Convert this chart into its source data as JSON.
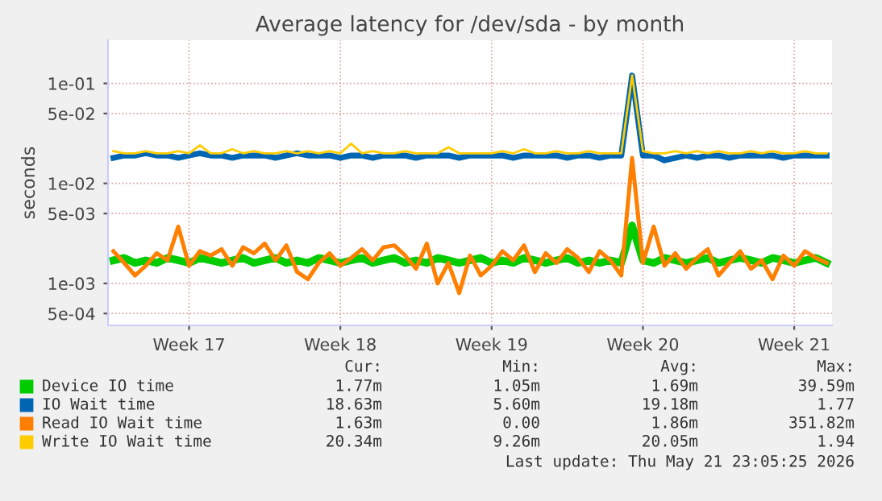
{
  "chart_data": {
    "type": "line",
    "title": "Average latency for /dev/sda - by month",
    "ylabel": "seconds",
    "log": "y",
    "categories": [
      null,
      null,
      null,
      null,
      null,
      null,
      null,
      "Week 17",
      null,
      null,
      null,
      null,
      null,
      null,
      null,
      null,
      null,
      null,
      null,
      null,
      null,
      "Week 18",
      null,
      null,
      null,
      null,
      null,
      null,
      null,
      null,
      null,
      null,
      null,
      null,
      null,
      "Week 19",
      null,
      null,
      null,
      null,
      null,
      null,
      null,
      null,
      null,
      null,
      null,
      null,
      null,
      "Week 20",
      null,
      null,
      null,
      null,
      null,
      null,
      null,
      null,
      null,
      null,
      null,
      null,
      null,
      "Week 21",
      null,
      null,
      null
    ],
    "ylim": [
      0.00038,
      0.27
    ],
    "yticks": [
      {
        "value": 0.1,
        "label": "1e-01"
      },
      {
        "value": 0.05,
        "label": "5e-02"
      },
      {
        "value": 0.01,
        "label": "1e-02"
      },
      {
        "value": 0.005,
        "label": "5e-03"
      },
      {
        "value": 0.001,
        "label": "1e-03"
      },
      {
        "value": 0.0005,
        "label": "5e-04"
      }
    ],
    "grid": true,
    "legend": "bottom",
    "series": [
      {
        "name": "Device IO time",
        "color": "#00cc00",
        "values": [
          0.0017,
          0.0018,
          0.0016,
          0.0017,
          0.0016,
          0.0018,
          0.0017,
          0.0016,
          0.0018,
          0.0017,
          0.0016,
          0.0017,
          0.0018,
          0.0016,
          0.0017,
          0.0018,
          0.0016,
          0.0017,
          0.0016,
          0.0018,
          0.0017,
          0.0016,
          0.0017,
          0.0018,
          0.0016,
          0.0017,
          0.0018,
          0.0016,
          0.0017,
          0.0016,
          0.0018,
          0.0017,
          0.0016,
          0.0017,
          0.0018,
          0.0016,
          0.0017,
          0.0016,
          0.0018,
          0.0017,
          0.0016,
          0.0017,
          0.0018,
          0.0016,
          0.0017,
          0.0016,
          0.0017,
          0.0016,
          0.0038,
          0.0017,
          0.0016,
          0.0018,
          0.0017,
          0.0016,
          0.0017,
          0.0018,
          0.0016,
          0.0017,
          0.0018,
          0.0017,
          0.0016,
          0.0018,
          0.0017,
          0.0016,
          0.0017,
          0.0018,
          0.0016
        ]
      },
      {
        "name": "IO Wait time",
        "color": "#0066b3",
        "values": [
          0.018,
          0.019,
          0.019,
          0.02,
          0.019,
          0.019,
          0.018,
          0.019,
          0.02,
          0.019,
          0.019,
          0.018,
          0.019,
          0.019,
          0.019,
          0.018,
          0.019,
          0.02,
          0.019,
          0.019,
          0.019,
          0.018,
          0.019,
          0.019,
          0.018,
          0.019,
          0.019,
          0.019,
          0.018,
          0.019,
          0.019,
          0.019,
          0.018,
          0.019,
          0.019,
          0.019,
          0.019,
          0.018,
          0.019,
          0.019,
          0.019,
          0.019,
          0.018,
          0.019,
          0.019,
          0.018,
          0.019,
          0.019,
          0.12,
          0.019,
          0.019,
          0.017,
          0.018,
          0.019,
          0.018,
          0.019,
          0.019,
          0.018,
          0.019,
          0.019,
          0.019,
          0.019,
          0.018,
          0.019,
          0.019,
          0.019,
          0.019
        ]
      },
      {
        "name": "Read IO Wait time",
        "color": "#ff8000",
        "values": [
          0.0021,
          0.0016,
          0.0012,
          0.0015,
          0.002,
          0.0017,
          0.0037,
          0.0015,
          0.0021,
          0.0019,
          0.0022,
          0.0015,
          0.0023,
          0.002,
          0.0025,
          0.0017,
          0.0024,
          0.0013,
          0.0011,
          0.0016,
          0.002,
          0.0015,
          0.0018,
          0.0022,
          0.0017,
          0.0023,
          0.0024,
          0.0019,
          0.0014,
          0.0025,
          0.001,
          0.0016,
          0.0008,
          0.0019,
          0.0012,
          0.0015,
          0.0021,
          0.0017,
          0.0024,
          0.0013,
          0.002,
          0.0016,
          0.0022,
          0.0018,
          0.0013,
          0.0021,
          0.0017,
          0.0012,
          0.018,
          0.0016,
          0.0037,
          0.0015,
          0.002,
          0.0014,
          0.0018,
          0.0022,
          0.0012,
          0.0016,
          0.0021,
          0.0014,
          0.0017,
          0.0011,
          0.0019,
          0.0015,
          0.0021,
          0.0018,
          0.0016
        ]
      },
      {
        "name": "Write IO Wait time",
        "color": "#ffcc00",
        "values": [
          0.021,
          0.02,
          0.02,
          0.021,
          0.02,
          0.02,
          0.021,
          0.02,
          0.024,
          0.02,
          0.02,
          0.022,
          0.02,
          0.021,
          0.02,
          0.02,
          0.021,
          0.02,
          0.021,
          0.02,
          0.021,
          0.02,
          0.025,
          0.02,
          0.021,
          0.02,
          0.02,
          0.021,
          0.02,
          0.02,
          0.02,
          0.023,
          0.02,
          0.02,
          0.02,
          0.02,
          0.021,
          0.02,
          0.022,
          0.02,
          0.02,
          0.021,
          0.02,
          0.02,
          0.021,
          0.02,
          0.02,
          0.02,
          0.12,
          0.021,
          0.02,
          0.02,
          0.021,
          0.02,
          0.021,
          0.02,
          0.021,
          0.02,
          0.02,
          0.021,
          0.02,
          0.021,
          0.02,
          0.02,
          0.021,
          0.02,
          0.02
        ]
      }
    ],
    "annotations": [
      "Cur:",
      "Min:",
      "Avg:",
      "Max:",
      "1.77m",
      "1.05m",
      "1.69m",
      "39.59m",
      "18.63m",
      "5.60m",
      "19.18m",
      "1.77",
      "1.63m",
      "0.00",
      "1.86m",
      "351.82m",
      "20.34m",
      "9.26m",
      "20.05m",
      "1.94",
      "Last update: Thu May 21 23:05:25 2026"
    ]
  }
}
